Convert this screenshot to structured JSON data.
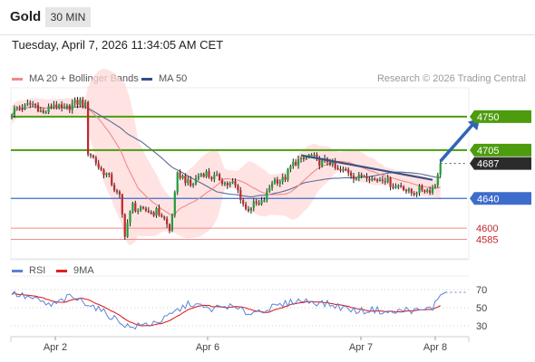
{
  "header": {
    "instrument": "Gold",
    "timeframe": "30 MIN",
    "datetime": "Tuesday, April 7, 2026 11:34:05 AM CET"
  },
  "legend": {
    "ma20": "MA 20 + Bollinger Bands",
    "ma50": "MA 50",
    "credit": "Research © 2026 Trading Central",
    "rsi": "RSI",
    "ma9": "9MA"
  },
  "colors": {
    "bull": "#1f9d3a",
    "bear": "#c0282b",
    "ma20": "#f08a8a",
    "ma50": "#5a6c96",
    "band_fill": "#ffd9d9",
    "resistance": "#4d9c0e",
    "pivot": "#3e6ccc",
    "support": "#f28c8c",
    "trend": "#3c5080",
    "arrow": "#2f66b4",
    "rsi": "#5a82d8",
    "rsi_ma": "#e02020"
  },
  "chart_data": [
    {
      "type": "candlestick",
      "ylim": [
        4560,
        4790
      ],
      "x_ticks": [
        "Apr 2",
        "Apr 6",
        "Apr 7",
        "Apr 8"
      ],
      "levels": [
        {
          "label": "4750",
          "value": 4750,
          "kind": "resistance"
        },
        {
          "label": "4705",
          "value": 4705,
          "kind": "resistance"
        },
        {
          "label": "4687",
          "value": 4687,
          "kind": "last"
        },
        {
          "label": "4640",
          "value": 4640,
          "kind": "pivot"
        },
        {
          "label": "4600",
          "value": 4600,
          "kind": "support"
        },
        {
          "label": "4585",
          "value": 4585,
          "kind": "support"
        }
      ],
      "anchors": [
        [
          0,
          4755
        ],
        [
          6,
          4768
        ],
        [
          12,
          4757
        ],
        [
          16,
          4764
        ],
        [
          22,
          4761
        ],
        [
          26,
          4773
        ],
        [
          28,
          4765
        ],
        [
          29,
          4700
        ],
        [
          32,
          4690
        ],
        [
          36,
          4670
        ],
        [
          41,
          4644
        ],
        [
          43,
          4590
        ],
        [
          46,
          4633
        ],
        [
          50,
          4620
        ],
        [
          55,
          4625
        ],
        [
          60,
          4598
        ],
        [
          63,
          4670
        ],
        [
          68,
          4660
        ],
        [
          74,
          4676
        ],
        [
          78,
          4665
        ],
        [
          84,
          4660
        ],
        [
          89,
          4628
        ],
        [
          94,
          4630
        ],
        [
          99,
          4660
        ],
        [
          104,
          4670
        ],
        [
          109,
          4693
        ],
        [
          114,
          4695
        ],
        [
          120,
          4688
        ],
        [
          126,
          4676
        ],
        [
          132,
          4670
        ],
        [
          138,
          4668
        ],
        [
          144,
          4662
        ],
        [
          150,
          4651
        ],
        [
          155,
          4649
        ],
        [
          158,
          4653
        ],
        [
          161,
          4658
        ],
        [
          163,
          4687
        ]
      ],
      "trendline": [
        [
          110,
          4698
        ],
        [
          160,
          4665
        ]
      ],
      "target_arrow": [
        [
          163,
          4690
        ],
        [
          178,
          4748
        ]
      ]
    },
    {
      "type": "line",
      "name": "RSI",
      "ylim": [
        20,
        80
      ],
      "y_ticks": [
        30,
        50,
        70
      ],
      "anchors": [
        [
          0,
          66
        ],
        [
          8,
          60
        ],
        [
          15,
          52
        ],
        [
          22,
          62
        ],
        [
          29,
          55
        ],
        [
          35,
          45
        ],
        [
          41,
          35
        ],
        [
          45,
          28
        ],
        [
          52,
          32
        ],
        [
          58,
          37
        ],
        [
          63,
          47
        ],
        [
          68,
          55
        ],
        [
          75,
          48
        ],
        [
          82,
          52
        ],
        [
          90,
          44
        ],
        [
          96,
          48
        ],
        [
          102,
          52
        ],
        [
          108,
          58
        ],
        [
          114,
          57
        ],
        [
          120,
          54
        ],
        [
          126,
          50
        ],
        [
          132,
          46
        ],
        [
          138,
          48
        ],
        [
          144,
          44
        ],
        [
          150,
          48
        ],
        [
          155,
          46
        ],
        [
          160,
          50
        ],
        [
          163,
          64
        ],
        [
          165,
          67
        ]
      ]
    }
  ]
}
